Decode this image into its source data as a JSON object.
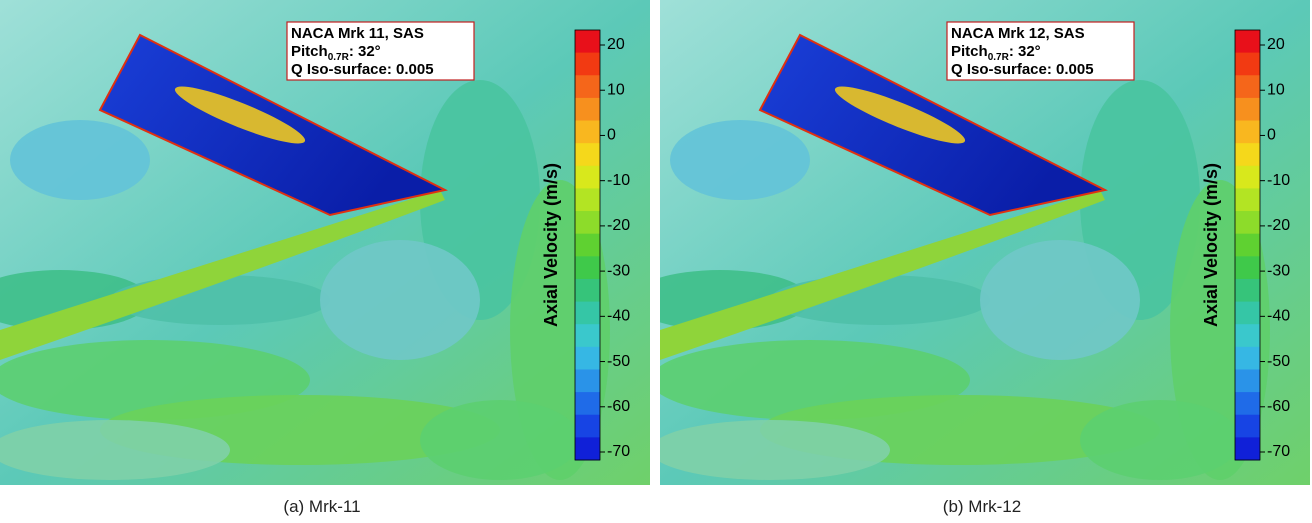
{
  "panels": [
    {
      "legend": {
        "line1": "NACA Mrk 11, SAS",
        "pitch_label": "Pitch",
        "pitch_sub": "0.7R",
        "pitch_value": ": 32°",
        "line3": "Q Iso-surface: 0.005"
      },
      "colorbar": {
        "title": "Axial Velocity (m/s)",
        "ticks": [
          "20",
          "10",
          "0",
          "-10",
          "-20",
          "-30",
          "-40",
          "-50",
          "-60",
          "-70"
        ]
      },
      "caption": "(a) Mrk-11"
    },
    {
      "legend": {
        "line1": "NACA Mrk 12, SAS",
        "pitch_label": "Pitch",
        "pitch_sub": "0.7R",
        "pitch_value": ": 32°",
        "line3": "Q Iso-surface: 0.005"
      },
      "colorbar": {
        "title": "Axial Velocity (m/s)",
        "ticks": [
          "20",
          "10",
          "0",
          "-10",
          "-20",
          "-30",
          "-40",
          "-50",
          "-60",
          "-70"
        ]
      },
      "caption": "(b) Mrk-12"
    }
  ]
}
